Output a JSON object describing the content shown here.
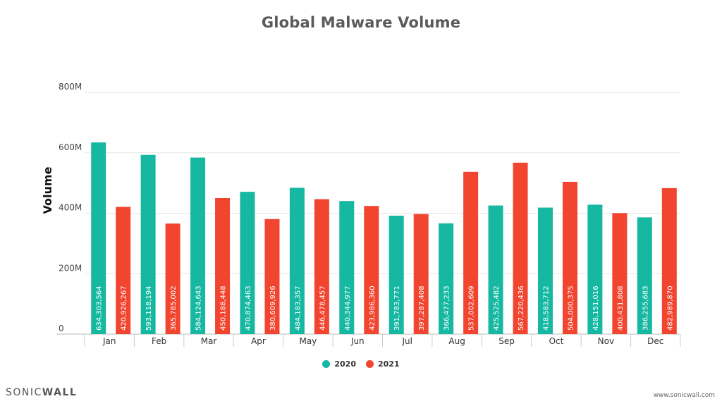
{
  "chart_data": {
    "type": "bar",
    "title": "Global Malware Volume",
    "xlabel": "",
    "ylabel": "Volume",
    "ylim": [
      0,
      800000000
    ],
    "yticks": [
      {
        "value": 0,
        "label": "0"
      },
      {
        "value": 200000000,
        "label": "200M"
      },
      {
        "value": 400000000,
        "label": "400M"
      },
      {
        "value": 600000000,
        "label": "600M"
      },
      {
        "value": 800000000,
        "label": "800M"
      }
    ],
    "grid": true,
    "legend": "bottom",
    "categories": [
      "Jan",
      "Feb",
      "Mar",
      "Apr",
      "May",
      "Jun",
      "Jul",
      "Aug",
      "Sep",
      "Oct",
      "Nov",
      "Dec"
    ],
    "series": [
      {
        "name": "2020",
        "color": "#16b8a2",
        "values": [
          634303564,
          593118194,
          584124643,
          470874463,
          484183357,
          440344977,
          391783771,
          366477233,
          425525482,
          418583712,
          428151016,
          386255683
        ],
        "labels": [
          "634,303,564",
          "593,118,194",
          "584,124,643",
          "470,874,463",
          "484,183,357",
          "440,344,977",
          "391,783,771",
          "366,477,233",
          "425,525,482",
          "418,583,712",
          "428,151,016",
          "386,255,683"
        ]
      },
      {
        "name": "2021",
        "color": "#f2452f",
        "values": [
          420926267,
          365785002,
          450188448,
          380609926,
          446478457,
          423986360,
          397287408,
          537002609,
          567220436,
          504000375,
          400431808,
          482989870
        ],
        "labels": [
          "420,926,267",
          "365,785,002",
          "450,188,448",
          "380,609,926",
          "446,478,457",
          "423,986,360",
          "397,287,408",
          "537,002,609",
          "567,220,436",
          "504,000,375",
          "400,431,808",
          "482,989,870"
        ]
      }
    ]
  },
  "footer": {
    "logo_prefix": "SONIC",
    "logo_suffix": "WALL",
    "url": "www.sonicwall.com"
  }
}
